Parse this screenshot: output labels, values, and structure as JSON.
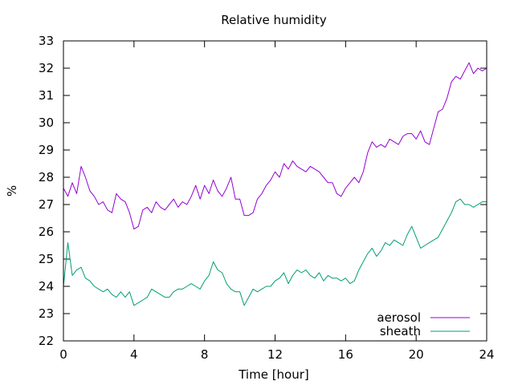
{
  "chart_data": {
    "type": "line",
    "title": "Relative humidity",
    "xlabel": "Time [hour]",
    "ylabel": "%",
    "xlim": [
      0,
      24
    ],
    "ylim": [
      22,
      33
    ],
    "xticks": [
      0,
      4,
      8,
      12,
      16,
      20,
      24
    ],
    "yticks": [
      22,
      23,
      24,
      25,
      26,
      27,
      28,
      29,
      30,
      31,
      32,
      33
    ],
    "legend_position": "bottom-right",
    "grid": false,
    "series": [
      {
        "name": "aerosol",
        "color": "#9400d3",
        "x": [
          0.0,
          0.25,
          0.5,
          0.75,
          1.0,
          1.25,
          1.5,
          1.75,
          2.0,
          2.25,
          2.5,
          2.75,
          3.0,
          3.25,
          3.5,
          3.75,
          4.0,
          4.25,
          4.5,
          4.75,
          5.0,
          5.25,
          5.5,
          5.75,
          6.0,
          6.25,
          6.5,
          6.75,
          7.0,
          7.25,
          7.5,
          7.75,
          8.0,
          8.25,
          8.5,
          8.75,
          9.0,
          9.25,
          9.5,
          9.75,
          10.0,
          10.25,
          10.5,
          10.75,
          11.0,
          11.25,
          11.5,
          11.75,
          12.0,
          12.25,
          12.5,
          12.75,
          13.0,
          13.25,
          13.5,
          13.75,
          14.0,
          14.25,
          14.5,
          14.75,
          15.0,
          15.25,
          15.5,
          15.75,
          16.0,
          16.25,
          16.5,
          16.75,
          17.0,
          17.25,
          17.5,
          17.75,
          18.0,
          18.25,
          18.5,
          18.75,
          19.0,
          19.25,
          19.5,
          19.75,
          20.0,
          20.25,
          20.5,
          20.75,
          21.0,
          21.25,
          21.5,
          21.75,
          22.0,
          22.25,
          22.5,
          22.75,
          23.0,
          23.25,
          23.5,
          23.75,
          24.0
        ],
        "values": [
          27.6,
          27.3,
          27.8,
          27.4,
          28.4,
          28.0,
          27.5,
          27.3,
          27.0,
          27.1,
          26.8,
          26.7,
          27.4,
          27.2,
          27.1,
          26.7,
          26.1,
          26.2,
          26.8,
          26.9,
          26.7,
          27.1,
          26.9,
          26.8,
          27.0,
          27.2,
          26.9,
          27.1,
          27.0,
          27.3,
          27.7,
          27.2,
          27.7,
          27.4,
          27.9,
          27.5,
          27.3,
          27.6,
          28.0,
          27.2,
          27.2,
          26.6,
          26.6,
          26.7,
          27.2,
          27.4,
          27.7,
          27.9,
          28.2,
          28.0,
          28.5,
          28.3,
          28.6,
          28.4,
          28.3,
          28.2,
          28.4,
          28.3,
          28.2,
          28.0,
          27.8,
          27.8,
          27.4,
          27.3,
          27.6,
          27.8,
          28.0,
          27.8,
          28.2,
          28.9,
          29.3,
          29.1,
          29.2,
          29.1,
          29.4,
          29.3,
          29.2,
          29.5,
          29.6,
          29.6,
          29.4,
          29.7,
          29.3,
          29.2,
          29.8,
          30.4,
          30.5,
          30.9,
          31.5,
          31.7,
          31.6,
          31.9,
          32.2,
          31.8,
          32.0,
          31.9,
          32.0
        ]
      },
      {
        "name": "sheath",
        "color": "#009e73",
        "x": [
          0.0,
          0.25,
          0.5,
          0.75,
          1.0,
          1.25,
          1.5,
          1.75,
          2.0,
          2.25,
          2.5,
          2.75,
          3.0,
          3.25,
          3.5,
          3.75,
          4.0,
          4.25,
          4.5,
          4.75,
          5.0,
          5.25,
          5.5,
          5.75,
          6.0,
          6.25,
          6.5,
          6.75,
          7.0,
          7.25,
          7.5,
          7.75,
          8.0,
          8.25,
          8.5,
          8.75,
          9.0,
          9.25,
          9.5,
          9.75,
          10.0,
          10.25,
          10.5,
          10.75,
          11.0,
          11.25,
          11.5,
          11.75,
          12.0,
          12.25,
          12.5,
          12.75,
          13.0,
          13.25,
          13.5,
          13.75,
          14.0,
          14.25,
          14.5,
          14.75,
          15.0,
          15.25,
          15.5,
          15.75,
          16.0,
          16.25,
          16.5,
          16.75,
          17.0,
          17.25,
          17.5,
          17.75,
          18.0,
          18.25,
          18.5,
          18.75,
          19.0,
          19.25,
          19.5,
          19.75,
          20.0,
          20.25,
          20.5,
          20.75,
          21.0,
          21.25,
          21.5,
          21.75,
          22.0,
          22.25,
          22.5,
          22.75,
          23.0,
          23.25,
          23.5,
          23.75,
          24.0
        ],
        "values": [
          24.0,
          25.6,
          24.4,
          24.6,
          24.7,
          24.3,
          24.2,
          24.0,
          23.9,
          23.8,
          23.9,
          23.7,
          23.6,
          23.8,
          23.6,
          23.8,
          23.3,
          23.4,
          23.5,
          23.6,
          23.9,
          23.8,
          23.7,
          23.6,
          23.6,
          23.8,
          23.9,
          23.9,
          24.0,
          24.1,
          24.0,
          23.9,
          24.2,
          24.4,
          24.9,
          24.6,
          24.5,
          24.1,
          23.9,
          23.8,
          23.8,
          23.3,
          23.6,
          23.9,
          23.8,
          23.9,
          24.0,
          24.0,
          24.2,
          24.3,
          24.5,
          24.1,
          24.4,
          24.6,
          24.5,
          24.6,
          24.4,
          24.3,
          24.5,
          24.2,
          24.4,
          24.3,
          24.3,
          24.2,
          24.3,
          24.1,
          24.2,
          24.6,
          24.9,
          25.2,
          25.4,
          25.1,
          25.3,
          25.6,
          25.5,
          25.7,
          25.6,
          25.5,
          25.9,
          26.2,
          25.8,
          25.4,
          25.5,
          25.6,
          25.7,
          25.8,
          26.1,
          26.4,
          26.7,
          27.1,
          27.2,
          27.0,
          27.0,
          26.9,
          27.0,
          27.1,
          27.1
        ]
      }
    ]
  }
}
